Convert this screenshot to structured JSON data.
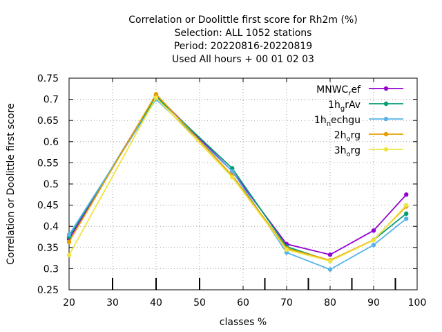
{
  "chart_data": {
    "type": "line",
    "title_lines": [
      "Correlation or Doolittle first score  for Rh2m (%)",
      "Selection: ALL   1052 stations",
      "Period: 20220816-20220819",
      "Used  All hours + 00 01 02 03"
    ],
    "xlabel": "classes %",
    "ylabel": "Correlation or Doolittle first score",
    "xlim": [
      20,
      100
    ],
    "ylim": [
      0.25,
      0.75
    ],
    "xticks": [
      20,
      30,
      40,
      50,
      60,
      70,
      80,
      90,
      100
    ],
    "yticks": [
      0.25,
      0.3,
      0.35,
      0.4,
      0.45,
      0.5,
      0.55,
      0.6,
      0.65,
      0.7,
      0.75
    ],
    "grid": true,
    "legend_position": "top-right",
    "class_marks": [
      30,
      40,
      50,
      65,
      75,
      85,
      95
    ],
    "series": [
      {
        "name": "MNWC_ref",
        "legend_main": "MNWC",
        "legend_sub": "r",
        "legend_rest": "ef",
        "color": "#9400d3",
        "marker": "circle",
        "x": [
          20,
          40,
          57.5,
          70,
          80,
          90,
          97.5
        ],
        "y": [
          0.37,
          0.71,
          0.53,
          0.358,
          0.333,
          0.39,
          0.475
        ]
      },
      {
        "name": "1h_grAv",
        "legend_main": "1h",
        "legend_sub": "g",
        "legend_rest": "rAv",
        "color": "#009e73",
        "marker": "circle",
        "x": [
          20,
          40,
          57.5,
          70,
          80,
          90,
          97.5
        ],
        "y": [
          0.375,
          0.706,
          0.537,
          0.352,
          0.318,
          0.368,
          0.43
        ]
      },
      {
        "name": "1h_nechgu",
        "legend_main": "1h",
        "legend_sub": "n",
        "legend_rest": "echgu",
        "color": "#56b4e9",
        "marker": "circle",
        "x": [
          20,
          40,
          57.5,
          70,
          80,
          90,
          97.5
        ],
        "y": [
          0.38,
          0.7,
          0.53,
          0.338,
          0.298,
          0.356,
          0.418
        ]
      },
      {
        "name": "2h_org",
        "legend_main": "2h",
        "legend_sub": "o",
        "legend_rest": "rg",
        "color": "#e69f00",
        "marker": "circle",
        "x": [
          20,
          40,
          57.5,
          70,
          80,
          90,
          97.5
        ],
        "y": [
          0.363,
          0.712,
          0.52,
          0.348,
          0.32,
          0.368,
          0.447
        ]
      },
      {
        "name": "3h_org",
        "legend_main": "3h",
        "legend_sub": "o",
        "legend_rest": "rg",
        "color": "#f0e442",
        "marker": "circle",
        "x": [
          20,
          40,
          57.5,
          70,
          80,
          90,
          97.5
        ],
        "y": [
          0.332,
          0.704,
          0.516,
          0.345,
          0.318,
          0.367,
          0.45
        ]
      }
    ]
  }
}
